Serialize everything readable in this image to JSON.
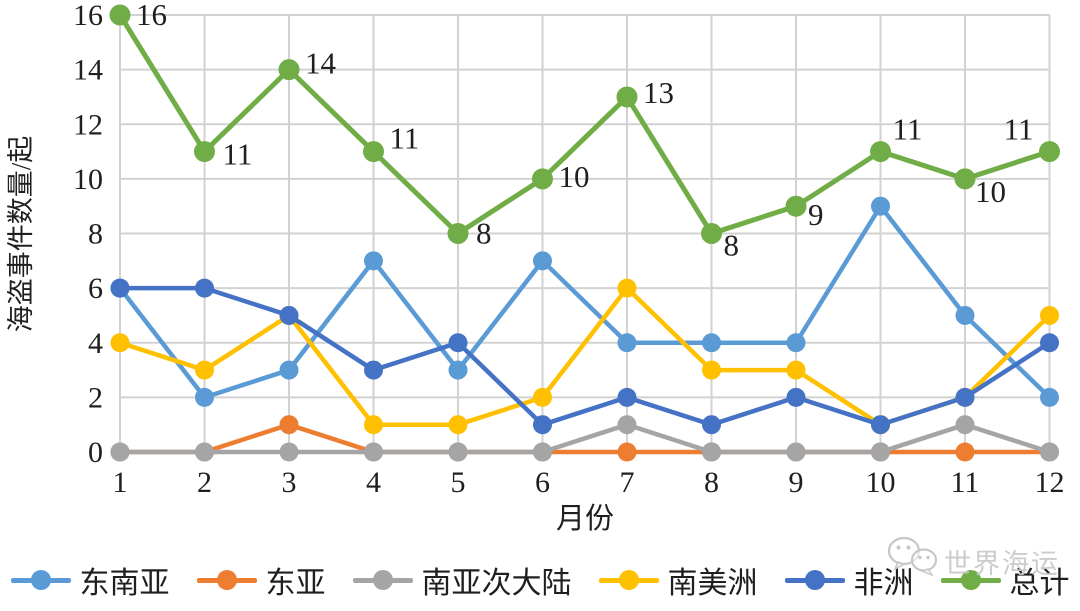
{
  "watermark": {
    "icon": "wechat-icon",
    "text": "世界海运"
  },
  "chart_data": {
    "type": "line",
    "title": "",
    "xlabel": "月份",
    "ylabel": "海盗事件数量/起",
    "x": [
      1,
      2,
      3,
      4,
      5,
      6,
      7,
      8,
      9,
      10,
      11,
      12
    ],
    "ylim": [
      0,
      16
    ],
    "yticks": [
      0,
      2,
      4,
      6,
      8,
      10,
      12,
      14,
      16
    ],
    "grid": true,
    "grid_color": "#d2d2d2",
    "legend_position": "bottom",
    "series": [
      {
        "name": "东南亚",
        "key": "southeast-asia",
        "color": "#5B9BD5",
        "values": [
          6,
          2,
          3,
          7,
          3,
          7,
          4,
          4,
          4,
          9,
          5,
          2
        ]
      },
      {
        "name": "东亚",
        "key": "east-asia",
        "color": "#ED7D31",
        "values": [
          0,
          0,
          1,
          0,
          0,
          0,
          0,
          0,
          0,
          0,
          0,
          0
        ]
      },
      {
        "name": "南亚次大陆",
        "key": "south-asian-subcontinent",
        "color": "#A5A5A5",
        "values": [
          0,
          0,
          0,
          0,
          0,
          0,
          1,
          0,
          0,
          0,
          1,
          0
        ]
      },
      {
        "name": "南美洲",
        "key": "south-america",
        "color": "#FFC000",
        "values": [
          4,
          3,
          5,
          1,
          1,
          2,
          6,
          3,
          3,
          1,
          2,
          5
        ]
      },
      {
        "name": "非洲",
        "key": "africa",
        "color": "#4472C4",
        "values": [
          6,
          6,
          5,
          3,
          4,
          1,
          2,
          1,
          2,
          1,
          2,
          4
        ]
      },
      {
        "name": "总计",
        "key": "total",
        "color": "#70AD47",
        "values": [
          16,
          11,
          14,
          11,
          8,
          10,
          13,
          8,
          9,
          11,
          10,
          11
        ],
        "data_labels": true
      }
    ]
  }
}
